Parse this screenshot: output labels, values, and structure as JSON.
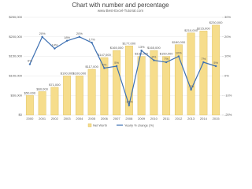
{
  "chart_data": {
    "type": "bar-line",
    "title": "Chart with number and percentage",
    "subtitle": "www.Best-Excel-Tutorial.com",
    "categories": [
      "2000",
      "2001",
      "2002",
      "2003",
      "2004",
      "2005",
      "2006",
      "2007",
      "2008",
      "2009",
      "2010",
      "2011",
      "2012",
      "2013",
      "2014",
      "2015"
    ],
    "series": [
      {
        "name": "Net Worth",
        "color": "#f6dd8c",
        "values": [
          50000,
          60000,
          71000,
          100000,
          100000,
          117000,
          147000,
          165000,
          177000,
          150000,
          165000,
          150000,
          180000,
          210000,
          215000,
          230000
        ],
        "value_labels": [
          "$50,000",
          "$60,000",
          "$71,000",
          "$100,000",
          "$100,000",
          "$117,000",
          "$147,000",
          "$165,000",
          "$177,000",
          "$150,000",
          "$165,000",
          "$150,000",
          "$180,000",
          "$210,000",
          "$215,000",
          "$230,000"
        ]
      },
      {
        "name": "Yearly % change (%)",
        "color": "#3d70b2",
        "axis": "y2",
        "values": [
          6,
          20,
          14,
          18,
          20,
          17,
          4,
          5,
          -15,
          13,
          8,
          7,
          10,
          -7,
          7,
          5
        ],
        "value_labels": [
          "6%",
          "20%",
          "14%",
          "18%",
          "20%",
          "17%",
          "4%",
          "5%",
          "-15%",
          "13%",
          "8%",
          "7%",
          "10%",
          "-7%",
          "7%",
          "5%"
        ]
      }
    ],
    "ylim": [
      0,
      250000
    ],
    "yticks": [
      {
        "value": 0,
        "label": "$0"
      },
      {
        "value": 50000,
        "label": "$50,000"
      },
      {
        "value": 100000,
        "label": "$100,000"
      },
      {
        "value": 150000,
        "label": "$150,000"
      },
      {
        "value": 200000,
        "label": "$200,000"
      },
      {
        "value": 250000,
        "label": "$250,000"
      }
    ],
    "y2lim": [
      -20,
      30
    ],
    "y2ticks": [
      {
        "value": -20,
        "label": "-20%"
      },
      {
        "value": -10,
        "label": "-10%"
      },
      {
        "value": 0,
        "label": "0%"
      },
      {
        "value": 10,
        "label": "10%"
      },
      {
        "value": 20,
        "label": "20%"
      },
      {
        "value": 30,
        "label": "30%"
      }
    ],
    "grid": true
  }
}
